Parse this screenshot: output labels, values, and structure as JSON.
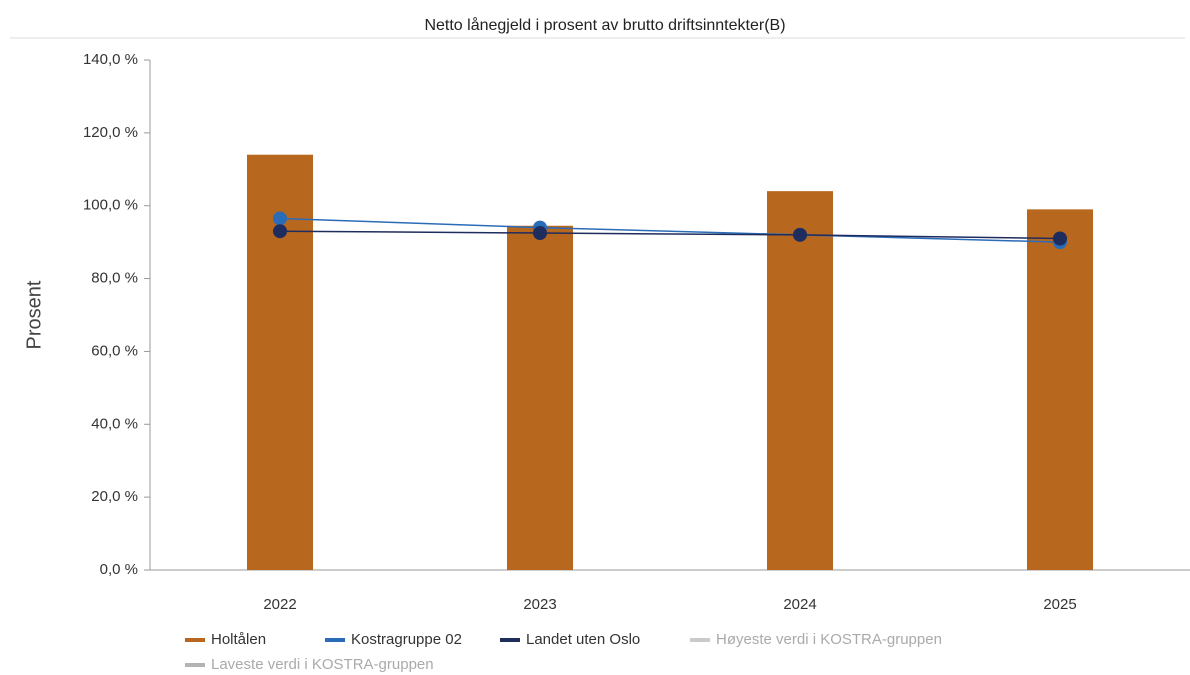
{
  "chart_data": {
    "type": "bar",
    "title": "Netto lånegjeld i prosent av brutto driftsinntekter(B)",
    "y_label": "Prosent",
    "categories": [
      "2022",
      "2023",
      "2024",
      "2025"
    ],
    "series": [
      {
        "name": "Holtålen",
        "type": "bar",
        "color": "#b8681e",
        "values": [
          114,
          94.5,
          104,
          99
        ]
      },
      {
        "name": "Kostragruppe 02",
        "type": "line",
        "color": "#2b6cb8",
        "values": [
          96.5,
          94,
          92,
          90
        ]
      },
      {
        "name": "Landet uten Oslo",
        "type": "line",
        "color": "#1f2c5e",
        "values": [
          93,
          92.5,
          92,
          91
        ]
      },
      {
        "name": "Høyeste verdi i KOSTRA-gruppen",
        "type": "line",
        "color": "#c9c9c9",
        "values": [
          null,
          null,
          null,
          null
        ]
      },
      {
        "name": "Laveste verdi i KOSTRA-gruppen",
        "type": "line",
        "color": "#b3b3b3",
        "values": [
          null,
          null,
          null,
          null
        ]
      }
    ],
    "ylim": [
      0,
      140
    ],
    "yticks": [
      {
        "value": 0,
        "label": "0,0 %"
      },
      {
        "value": 20,
        "label": "20,0 %"
      },
      {
        "value": 40,
        "label": "40,0 %"
      },
      {
        "value": 60,
        "label": "60,0 %"
      },
      {
        "value": 80,
        "label": "80,0 %"
      },
      {
        "value": 100,
        "label": "100,0 %"
      },
      {
        "value": 120,
        "label": "120,0 %"
      },
      {
        "value": 140,
        "label": "140,0 %"
      }
    ]
  }
}
